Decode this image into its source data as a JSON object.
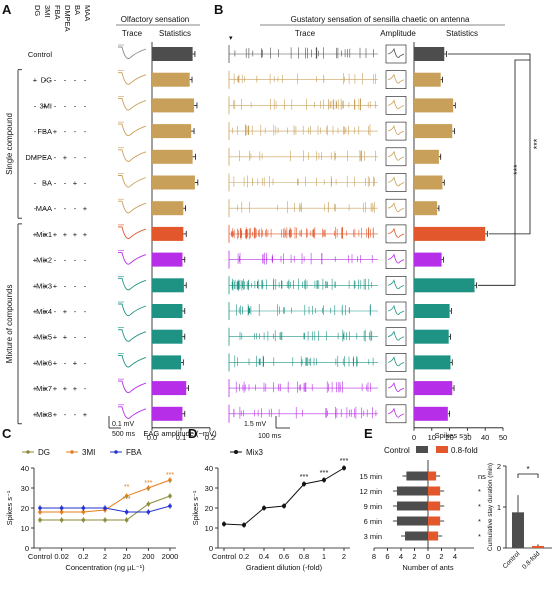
{
  "colors": {
    "control": "#4d4d4d",
    "single": "#c9a05a",
    "mix1": "#e2572c",
    "purple": "#b72ee8",
    "teal": "#1f9383",
    "olive": "#8b8b3a",
    "orange": "#e57d1c",
    "blue": "#2233cc",
    "gray": "#7a7a7a"
  },
  "panelA": {
    "label": "A",
    "compounds": [
      "DG",
      "3MI",
      "FBA",
      "DMPEA",
      "BA",
      "MAA"
    ],
    "header_trace": "Trace",
    "header_stats": "Statistics",
    "title": "Olfactory sensation",
    "group_single": "Single compound",
    "group_mix": "Mixture of compounds",
    "rows": [
      {
        "name": "Control",
        "signs": [
          "",
          "",
          "",
          "",
          "",
          ""
        ],
        "value": 0.14,
        "err": 0.008,
        "color": "control"
      },
      {
        "name": "DG",
        "signs": [
          "+",
          "-",
          "-",
          "-",
          "-",
          "-"
        ],
        "value": 0.13,
        "err": 0.008,
        "color": "single"
      },
      {
        "name": "3MI",
        "signs": [
          "-",
          "+",
          "-",
          "-",
          "-",
          "-"
        ],
        "value": 0.145,
        "err": 0.01,
        "color": "single"
      },
      {
        "name": "FBA",
        "signs": [
          "-",
          "-",
          "+",
          "-",
          "-",
          "-"
        ],
        "value": 0.135,
        "err": 0.01,
        "color": "single"
      },
      {
        "name": "DMPEA",
        "signs": [
          "-",
          "-",
          "-",
          "+",
          "-",
          "-"
        ],
        "value": 0.14,
        "err": 0.01,
        "color": "single"
      },
      {
        "name": "BA",
        "signs": [
          "-",
          "-",
          "-",
          "-",
          "+",
          "-"
        ],
        "value": 0.148,
        "err": 0.01,
        "color": "single"
      },
      {
        "name": "MAA",
        "signs": [
          "-",
          "-",
          "-",
          "-",
          "-",
          "+"
        ],
        "value": 0.108,
        "err": 0.008,
        "color": "single"
      },
      {
        "name": "Mix1",
        "signs": [
          "+",
          "+",
          "+",
          "+",
          "+",
          "+"
        ],
        "value": 0.108,
        "err": 0.01,
        "color": "mix1"
      },
      {
        "name": "Mix2",
        "signs": [
          "+",
          "+",
          "-",
          "-",
          "-",
          "-"
        ],
        "value": 0.105,
        "err": 0.008,
        "color": "purple"
      },
      {
        "name": "Mix3",
        "signs": [
          "+",
          "+",
          "+",
          "-",
          "-",
          "-"
        ],
        "value": 0.11,
        "err": 0.008,
        "color": "teal"
      },
      {
        "name": "Mix4",
        "signs": [
          "+",
          "+",
          "-",
          "+",
          "-",
          "-"
        ],
        "value": 0.105,
        "err": 0.008,
        "color": "teal"
      },
      {
        "name": "Mix5",
        "signs": [
          "+",
          "+",
          "+",
          "+",
          "-",
          "-"
        ],
        "value": 0.105,
        "err": 0.008,
        "color": "teal"
      },
      {
        "name": "Mix6",
        "signs": [
          "+",
          "+",
          "+",
          "-",
          "+",
          "-"
        ],
        "value": 0.1,
        "err": 0.008,
        "color": "teal"
      },
      {
        "name": "Mix7",
        "signs": [
          "+",
          "+",
          "+",
          "+",
          "+",
          "-"
        ],
        "value": 0.118,
        "err": 0.008,
        "color": "purple"
      },
      {
        "name": "Mix8",
        "signs": [
          "+",
          "+",
          "+",
          "-",
          "-",
          "+"
        ],
        "value": 0.105,
        "err": 0.008,
        "color": "purple"
      }
    ],
    "xlabel": "EAG amplitude (−mV)",
    "xticks": [
      "0.0",
      "0.1",
      "0.2"
    ],
    "xlim": [
      0,
      0.2
    ],
    "scalebar_v": "0.1 mV",
    "scalebar_t": "500 ms"
  },
  "panelB": {
    "label": "B",
    "title": "Gustatory sensation of sensilla chaetic on antenna",
    "header_trace": "Trace",
    "header_amp": "Amplitude",
    "header_stats": "Statistics",
    "values": [
      17,
      15,
      22,
      21.5,
      14,
      16,
      13,
      40,
      15.5,
      34,
      20,
      19.5,
      20.5,
      21.5,
      19
    ],
    "errs": [
      1.2,
      1,
      1.2,
      1.2,
      1,
      1,
      1,
      1.2,
      1,
      1.2,
      1,
      1,
      1,
      1,
      1
    ],
    "xlabel": "Spikes s⁻¹",
    "xticks": [
      "0",
      "10",
      "20",
      "30",
      "40",
      "50"
    ],
    "xlim": [
      0,
      50
    ],
    "scalebar_v": "1.5 mV",
    "scalebar_t": "100 ms",
    "sig1": "***",
    "sig2": "***"
  },
  "chart_data": [
    {
      "type": "bar",
      "panel": "A",
      "categories": [
        "Control",
        "DG",
        "3MI",
        "FBA",
        "DMPEA",
        "BA",
        "MAA",
        "Mix1",
        "Mix2",
        "Mix3",
        "Mix4",
        "Mix5",
        "Mix6",
        "Mix7",
        "Mix8"
      ],
      "values": [
        0.14,
        0.13,
        0.145,
        0.135,
        0.14,
        0.148,
        0.108,
        0.108,
        0.105,
        0.11,
        0.105,
        0.105,
        0.1,
        0.118,
        0.105
      ],
      "xlabel": "EAG amplitude (−mV)",
      "xlim": [
        0,
        0.2
      ]
    },
    {
      "type": "bar",
      "panel": "B",
      "categories": [
        "Control",
        "DG",
        "3MI",
        "FBA",
        "DMPEA",
        "BA",
        "MAA",
        "Mix1",
        "Mix2",
        "Mix3",
        "Mix4",
        "Mix5",
        "Mix6",
        "Mix7",
        "Mix8"
      ],
      "values": [
        17,
        15,
        22,
        21.5,
        14,
        16,
        13,
        40,
        15.5,
        34,
        20,
        19.5,
        20.5,
        21.5,
        19
      ],
      "xlabel": "Spikes s⁻¹",
      "xlim": [
        0,
        50
      ]
    },
    {
      "type": "line",
      "panel": "C",
      "x": [
        "Control",
        "0.02",
        "0.2",
        "2",
        "20",
        "200",
        "2000"
      ],
      "series": [
        {
          "name": "DG",
          "values": [
            14,
            14,
            14,
            14,
            14,
            22,
            26
          ],
          "color": "olive"
        },
        {
          "name": "3MI",
          "values": [
            18,
            18,
            18,
            19,
            26,
            30,
            34
          ],
          "color": "orange"
        },
        {
          "name": "FBA",
          "values": [
            20,
            20,
            20,
            20,
            18,
            18,
            21
          ],
          "color": "blue"
        }
      ],
      "xlabel": "Concentration (ng µL⁻¹)",
      "ylabel": "Spikes s⁻¹",
      "ylim": [
        0,
        40
      ],
      "yticks": [
        "0",
        "10",
        "20",
        "30",
        "40"
      ],
      "annotations": [
        "**",
        "***",
        "***",
        "***",
        "*",
        "*"
      ]
    },
    {
      "type": "line",
      "panel": "D",
      "x": [
        "Control",
        "0.2",
        "0.4",
        "0.6",
        "0.8",
        "1",
        "2"
      ],
      "series": [
        {
          "name": "Mix3",
          "values": [
            12,
            11.5,
            20,
            21,
            32,
            34,
            40
          ],
          "color": "#111"
        }
      ],
      "xlabel": "Gradient dilution (-fold)",
      "ylabel": "Spikes s⁻¹",
      "ylim": [
        0,
        40
      ],
      "yticks": [
        "0",
        "10",
        "20",
        "30",
        "40"
      ],
      "annotations": [
        "***",
        "***",
        "***"
      ]
    },
    {
      "type": "bar",
      "panel": "E-left",
      "categories": [
        "15 min",
        "12 min",
        "9 min",
        "6 min",
        "3 min"
      ],
      "series": [
        {
          "name": "Control",
          "values": [
            3.2,
            4.6,
            4.6,
            4.6,
            3.4
          ]
        },
        {
          "name": "0.8-fold",
          "values": [
            1.2,
            1.8,
            1.8,
            1.8,
            1.5
          ]
        }
      ],
      "xlabel": "Number of ants",
      "xticks": [
        "8",
        "6",
        "4",
        "2",
        "0",
        "2",
        "4"
      ],
      "sig": [
        "ns",
        "*",
        "*",
        "*",
        "*"
      ]
    },
    {
      "type": "bar",
      "panel": "E-right",
      "categories": [
        "Control",
        "0.8-fold"
      ],
      "values": [
        0.87,
        0.05
      ],
      "ylabel": "Cumulative stay duration (min)",
      "ylim": [
        0,
        2
      ],
      "yticks": [
        "0",
        "1",
        "2"
      ],
      "sig": "*"
    }
  ],
  "panelC": {
    "label": "C"
  },
  "panelD": {
    "label": "D"
  },
  "panelE": {
    "label": "E",
    "legend_control": "Control",
    "legend_fold": "0.8-fold"
  }
}
